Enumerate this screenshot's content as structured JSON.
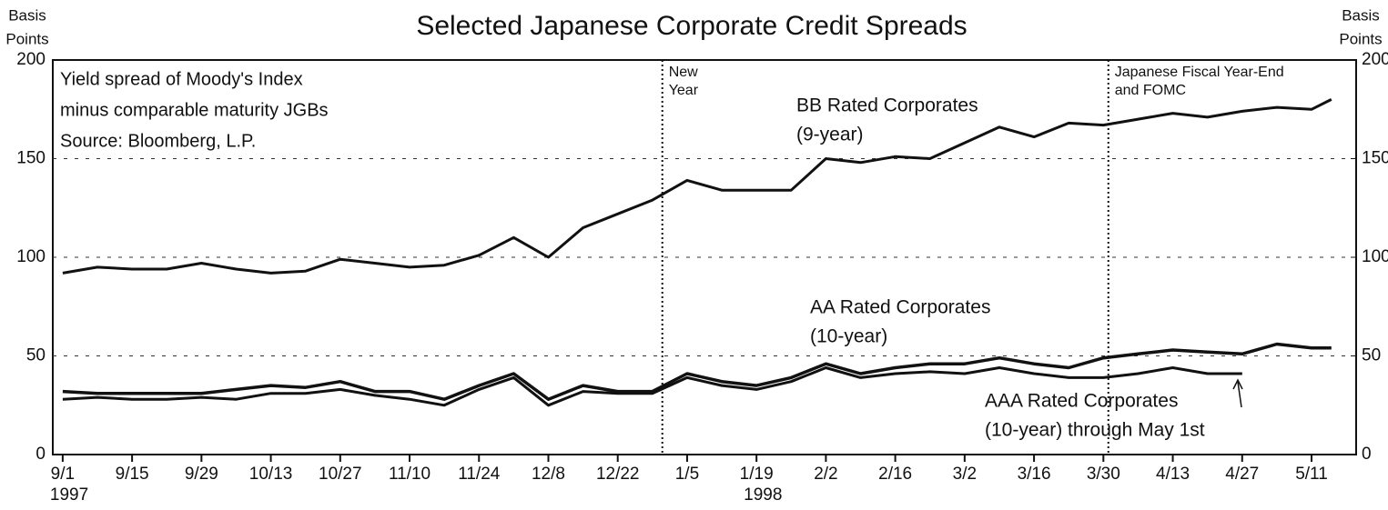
{
  "chart_data": {
    "type": "line",
    "title": "Selected Japanese Corporate Credit Spreads",
    "y_label": [
      "Basis",
      "Points"
    ],
    "y2_label": [
      "Basis",
      "Points"
    ],
    "note": [
      "Yield spread of Moody's Index",
      "minus comparable maturity JGBs",
      "Source: Bloomberg, L.P."
    ],
    "x": [
      "1997-09-01",
      "1997-09-08",
      "1997-09-15",
      "1997-09-22",
      "1997-09-29",
      "1997-10-06",
      "1997-10-13",
      "1997-10-20",
      "1997-10-27",
      "1997-11-03",
      "1997-11-10",
      "1997-11-17",
      "1997-11-24",
      "1997-12-01",
      "1997-12-08",
      "1997-12-15",
      "1997-12-22",
      "1997-12-29",
      "1998-01-05",
      "1998-01-12",
      "1998-01-19",
      "1998-01-26",
      "1998-02-02",
      "1998-02-09",
      "1998-02-16",
      "1998-02-23",
      "1998-03-02",
      "1998-03-09",
      "1998-03-16",
      "1998-03-23",
      "1998-03-30",
      "1998-04-06",
      "1998-04-13",
      "1998-04-20",
      "1998-04-27",
      "1998-05-04",
      "1998-05-11",
      "1998-05-15"
    ],
    "xlim": [
      "1997-08-30",
      "1998-05-20"
    ],
    "xticks": [
      {
        "value": "1997-09-01",
        "label": "9/1"
      },
      {
        "value": "1997-09-15",
        "label": "9/15"
      },
      {
        "value": "1997-09-29",
        "label": "9/29"
      },
      {
        "value": "1997-10-13",
        "label": "10/13"
      },
      {
        "value": "1997-10-27",
        "label": "10/27"
      },
      {
        "value": "1997-11-10",
        "label": "11/10"
      },
      {
        "value": "1997-11-24",
        "label": "11/24"
      },
      {
        "value": "1997-12-08",
        "label": "12/8"
      },
      {
        "value": "1997-12-22",
        "label": "12/22"
      },
      {
        "value": "1998-01-05",
        "label": "1/5"
      },
      {
        "value": "1998-01-19",
        "label": "1/19"
      },
      {
        "value": "1998-02-02",
        "label": "2/2"
      },
      {
        "value": "1998-02-16",
        "label": "2/16"
      },
      {
        "value": "1998-03-02",
        "label": "3/2"
      },
      {
        "value": "1998-03-16",
        "label": "3/16"
      },
      {
        "value": "1998-03-30",
        "label": "3/30"
      },
      {
        "value": "1998-04-13",
        "label": "4/13"
      },
      {
        "value": "1998-04-27",
        "label": "4/27"
      },
      {
        "value": "1998-05-11",
        "label": "5/11"
      }
    ],
    "year_labels": [
      {
        "value": "1997-09-01",
        "label": "1997"
      },
      {
        "value": "1998-01-19",
        "label": "1998"
      }
    ],
    "ylim": [
      0,
      200
    ],
    "yticks": [
      0,
      50,
      100,
      150,
      200
    ],
    "y2lim": [
      0,
      200
    ],
    "y2ticks": [
      0,
      50,
      100,
      150,
      200
    ],
    "grid": true,
    "events": [
      {
        "date": "1997-12-31",
        "label": [
          "New",
          "Year"
        ]
      },
      {
        "date": "1998-03-31",
        "label": [
          "Japanese Fiscal Year-End",
          "and FOMC"
        ]
      }
    ],
    "series": [
      {
        "name": "BB Rated Corporates",
        "detail": "(9-year)",
        "color": "#111111",
        "values": [
          92,
          95,
          94,
          94,
          97,
          94,
          92,
          93,
          99,
          97,
          95,
          96,
          101,
          110,
          100,
          115,
          122,
          129,
          139,
          134,
          134,
          134,
          150,
          148,
          151,
          150,
          158,
          166,
          161,
          168,
          167,
          170,
          173,
          171,
          174,
          176,
          175,
          180
        ]
      },
      {
        "name": "AA Rated Corporates",
        "detail": "(10-year)",
        "color": "#111111",
        "values": [
          32,
          31,
          31,
          31,
          31,
          33,
          35,
          34,
          37,
          32,
          32,
          28,
          35,
          41,
          28,
          35,
          32,
          32,
          41,
          37,
          35,
          39,
          46,
          41,
          44,
          46,
          46,
          49,
          46,
          44,
          49,
          51,
          53,
          52,
          51,
          56,
          54,
          54
        ]
      },
      {
        "name": "AAA Rated Corporates",
        "detail": "(10-year) through May 1st",
        "color": "#111111",
        "values": [
          28,
          29,
          28,
          28,
          29,
          28,
          31,
          31,
          33,
          30,
          28,
          25,
          33,
          39,
          25,
          32,
          31,
          31,
          39,
          35,
          33,
          37,
          44,
          39,
          41,
          42,
          41,
          44,
          41,
          39,
          39,
          41,
          44,
          41,
          41,
          null,
          null,
          null
        ]
      }
    ]
  }
}
